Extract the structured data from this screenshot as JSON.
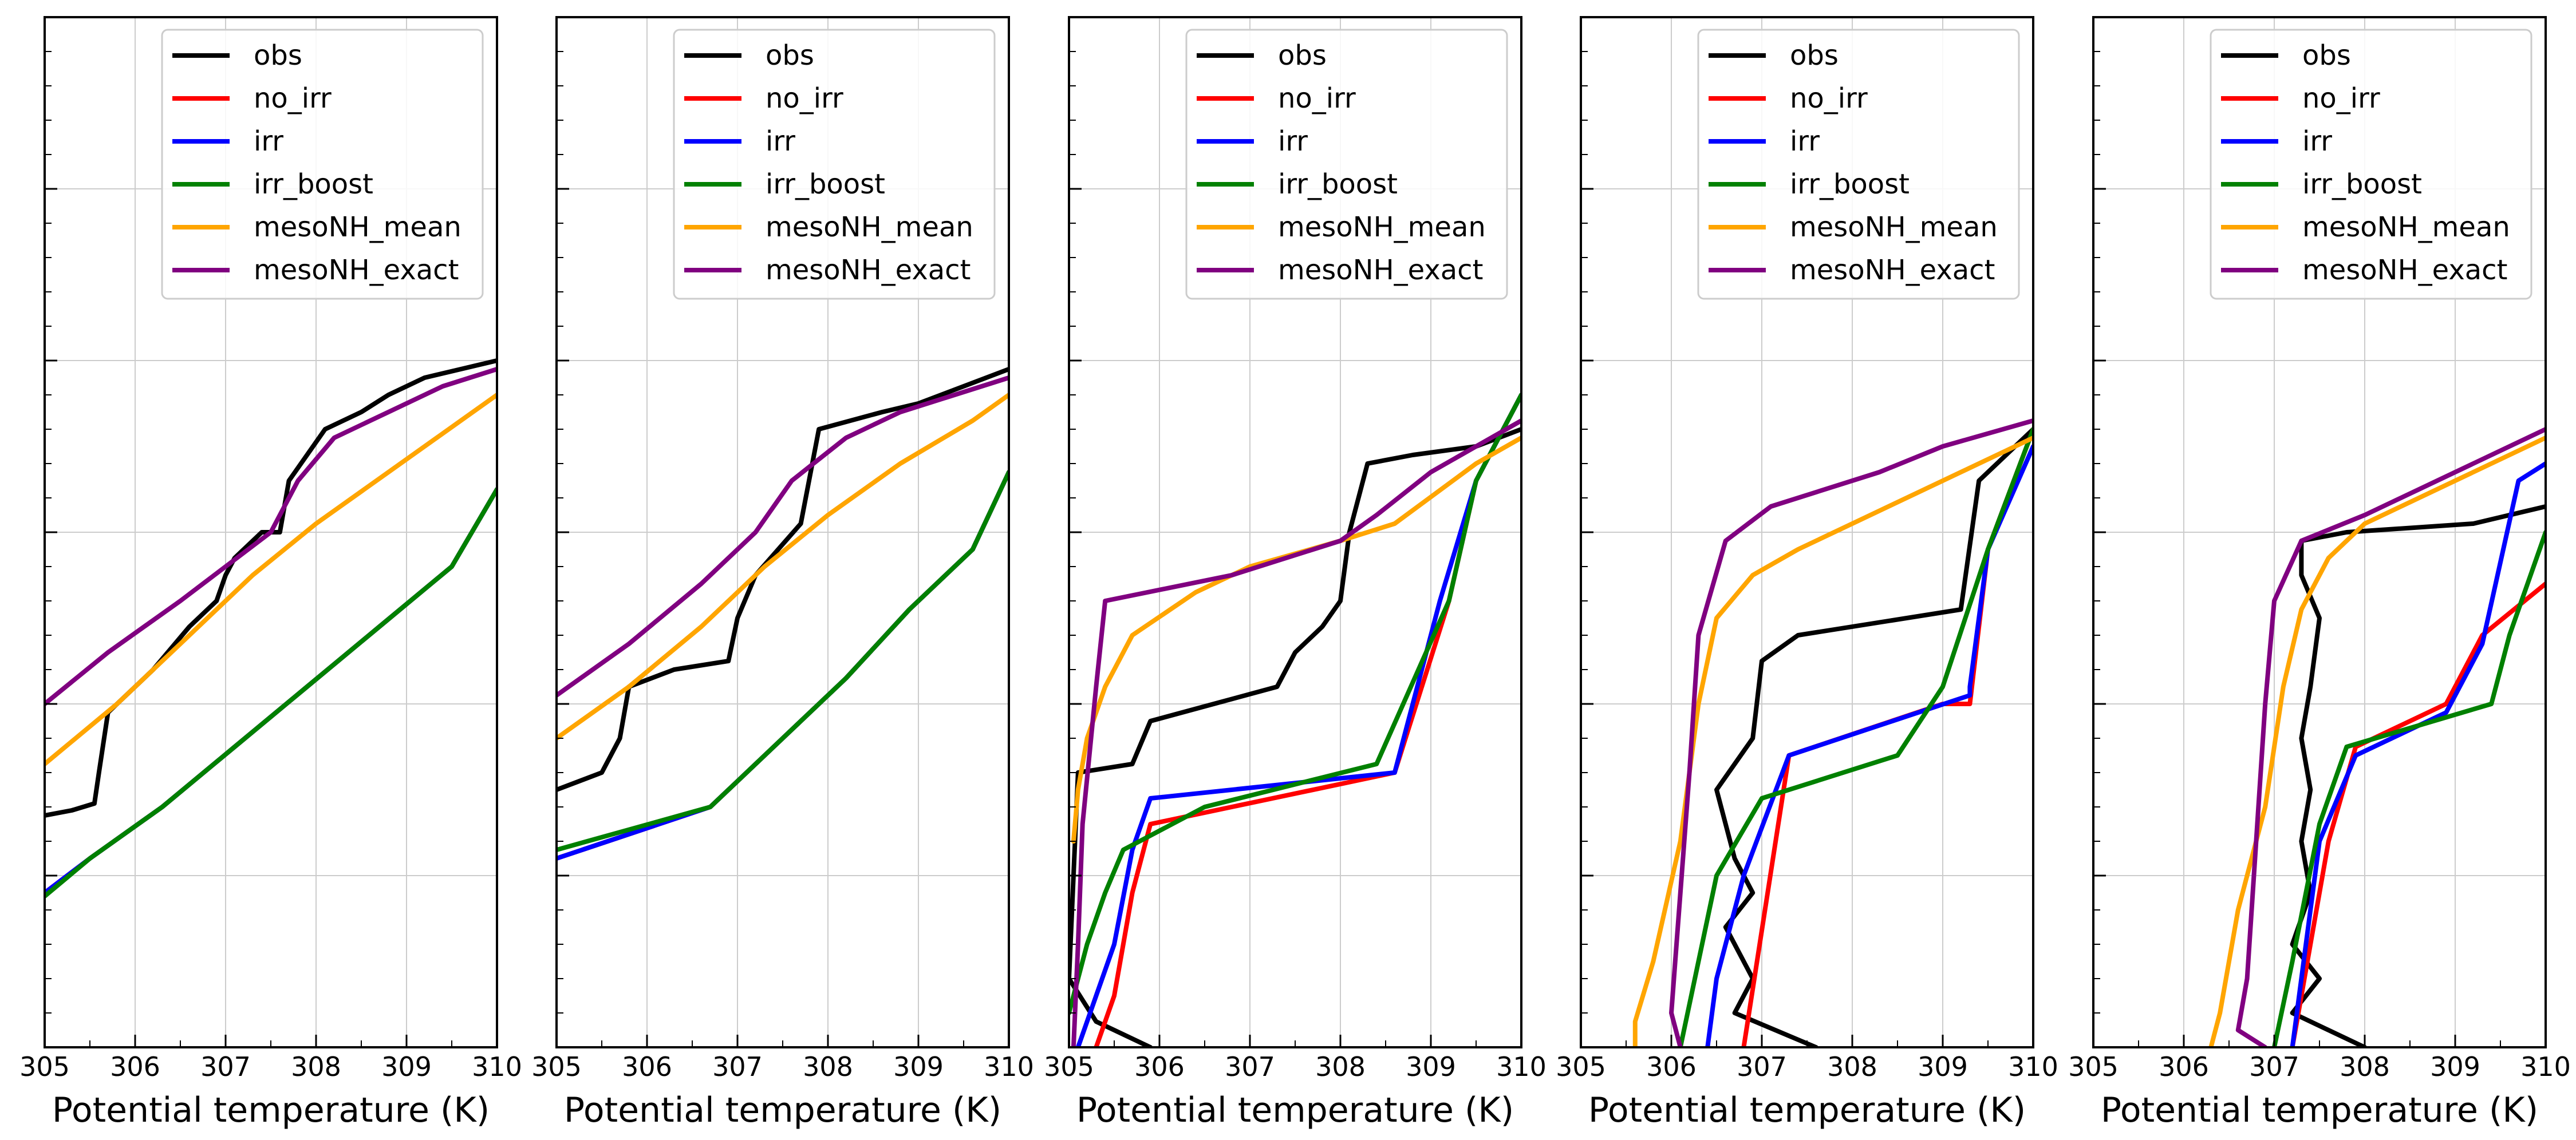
{
  "figure": {
    "panels": 5,
    "xlabel": "Potential temperature (K)",
    "xlim": [
      305,
      310
    ],
    "xticks": [
      "305",
      "306",
      "307",
      "308",
      "309",
      "310"
    ],
    "ylim": [
      0,
      6
    ],
    "grid": true,
    "legend_position": "top-right"
  },
  "colors": {
    "obs": "#000000",
    "no_irr": "#ff0000",
    "irr": "#0000ff",
    "irr_boost": "#008000",
    "mesoNH_mean": "#ffa500",
    "mesoNH_exact": "#800080"
  },
  "chart_data": [
    {
      "type": "line",
      "xlabel": "Potential temperature (K)",
      "xlim": [
        305,
        310
      ],
      "ylim": [
        0,
        6
      ],
      "series": [
        {
          "name": "obs",
          "key": "obs",
          "x": [
            305.0,
            305.3,
            305.55,
            305.6,
            305.7,
            305.8,
            306.2,
            306.6,
            306.9,
            307.0,
            307.1,
            307.4,
            307.6,
            307.7,
            308.1,
            308.5,
            308.8,
            309.2,
            309.6,
            310.0
          ],
          "y": [
            1.35,
            1.38,
            1.42,
            1.6,
            1.95,
            2.0,
            2.2,
            2.45,
            2.6,
            2.75,
            2.85,
            3.0,
            3.0,
            3.3,
            3.6,
            3.7,
            3.8,
            3.9,
            3.95,
            4.0
          ]
        },
        {
          "name": "no_irr",
          "key": "no_irr",
          "x": [
            305.0,
            305.5,
            306.3,
            307.1,
            307.9,
            308.7,
            309.5,
            310.0
          ],
          "y": [
            0.9,
            1.1,
            1.4,
            1.75,
            2.1,
            2.45,
            2.8,
            3.25
          ]
        },
        {
          "name": "irr",
          "key": "irr",
          "x": [
            305.0,
            305.5,
            306.3,
            307.1,
            307.9,
            308.7,
            309.5,
            310.0
          ],
          "y": [
            0.9,
            1.1,
            1.4,
            1.75,
            2.1,
            2.45,
            2.8,
            3.25
          ]
        },
        {
          "name": "irr_boost",
          "key": "irr_boost",
          "x": [
            305.0,
            305.5,
            306.3,
            307.1,
            307.9,
            308.7,
            309.5,
            310.0
          ],
          "y": [
            0.88,
            1.1,
            1.4,
            1.75,
            2.1,
            2.45,
            2.8,
            3.25
          ]
        },
        {
          "name": "mesoNH_mean",
          "key": "mesoNH_mean",
          "x": [
            305.0,
            305.8,
            306.6,
            307.3,
            308.0,
            308.8,
            309.6,
            310.0
          ],
          "y": [
            1.65,
            2.0,
            2.4,
            2.75,
            3.05,
            3.35,
            3.65,
            3.8
          ]
        },
        {
          "name": "mesoNH_exact",
          "key": "mesoNH_exact",
          "x": [
            305.0,
            305.7,
            306.5,
            307.0,
            307.5,
            307.8,
            308.2,
            308.8,
            309.4,
            310.0
          ],
          "y": [
            2.0,
            2.3,
            2.6,
            2.8,
            3.0,
            3.3,
            3.55,
            3.7,
            3.85,
            3.95
          ]
        }
      ]
    },
    {
      "type": "line",
      "xlabel": "Potential temperature (K)",
      "xlim": [
        305,
        310
      ],
      "ylim": [
        0,
        6
      ],
      "series": [
        {
          "name": "obs",
          "key": "obs",
          "x": [
            305.0,
            305.5,
            305.7,
            305.8,
            306.3,
            306.9,
            307.0,
            307.2,
            307.7,
            307.9,
            308.6,
            309.0,
            309.5,
            310.0
          ],
          "y": [
            1.5,
            1.6,
            1.8,
            2.1,
            2.2,
            2.25,
            2.5,
            2.75,
            3.05,
            3.6,
            3.7,
            3.75,
            3.85,
            3.95
          ]
        },
        {
          "name": "no_irr",
          "key": "no_irr",
          "x": [
            305.0,
            306.7,
            307.5,
            308.2,
            308.9,
            309.6,
            310.0
          ],
          "y": [
            1.1,
            1.4,
            1.8,
            2.15,
            2.55,
            2.9,
            3.35
          ]
        },
        {
          "name": "irr",
          "key": "irr",
          "x": [
            305.0,
            306.7,
            307.5,
            308.2,
            308.9,
            309.6,
            310.0
          ],
          "y": [
            1.1,
            1.4,
            1.8,
            2.15,
            2.55,
            2.9,
            3.35
          ]
        },
        {
          "name": "irr_boost",
          "key": "irr_boost",
          "x": [
            305.0,
            306.7,
            307.5,
            308.2,
            308.9,
            309.6,
            310.0
          ],
          "y": [
            1.15,
            1.4,
            1.8,
            2.15,
            2.55,
            2.9,
            3.35
          ]
        },
        {
          "name": "mesoNH_mean",
          "key": "mesoNH_mean",
          "x": [
            305.0,
            305.8,
            306.6,
            307.3,
            308.0,
            308.8,
            309.6,
            310.0
          ],
          "y": [
            1.8,
            2.1,
            2.45,
            2.8,
            3.1,
            3.4,
            3.65,
            3.8
          ]
        },
        {
          "name": "mesoNH_exact",
          "key": "mesoNH_exact",
          "x": [
            305.0,
            305.8,
            306.6,
            307.2,
            307.6,
            308.2,
            308.8,
            309.4,
            310.0
          ],
          "y": [
            2.05,
            2.35,
            2.7,
            3.0,
            3.3,
            3.55,
            3.7,
            3.8,
            3.9
          ]
        }
      ]
    },
    {
      "type": "line",
      "xlabel": "Potential temperature (K)",
      "xlim": [
        305,
        310
      ],
      "ylim": [
        0,
        6
      ],
      "series": [
        {
          "name": "obs",
          "key": "obs",
          "x": [
            305.9,
            305.3,
            305.0,
            305.1,
            305.7,
            305.9,
            306.6,
            307.3,
            307.5,
            307.8,
            308.0,
            308.1,
            308.2,
            308.3,
            308.8,
            309.5,
            310.0
          ],
          "y": [
            0.0,
            0.15,
            0.4,
            1.6,
            1.65,
            1.9,
            2.0,
            2.1,
            2.3,
            2.45,
            2.6,
            3.0,
            3.2,
            3.4,
            3.45,
            3.5,
            3.6
          ]
        },
        {
          "name": "no_irr",
          "key": "no_irr",
          "x": [
            305.3,
            305.5,
            305.6,
            305.7,
            305.9,
            308.6,
            309.2,
            309.5,
            310.0
          ],
          "y": [
            0.0,
            0.3,
            0.6,
            0.9,
            1.3,
            1.6,
            2.6,
            3.3,
            3.8
          ]
        },
        {
          "name": "irr",
          "key": "irr",
          "x": [
            305.1,
            305.3,
            305.5,
            305.7,
            305.9,
            308.6,
            309.1,
            309.5,
            310.0
          ],
          "y": [
            0.0,
            0.3,
            0.6,
            1.15,
            1.45,
            1.6,
            2.6,
            3.3,
            3.8
          ]
        },
        {
          "name": "irr_boost",
          "key": "irr_boost",
          "x": [
            305.0,
            305.2,
            305.4,
            305.6,
            306.5,
            308.4,
            309.2,
            309.5,
            310.0
          ],
          "y": [
            0.2,
            0.6,
            0.9,
            1.15,
            1.4,
            1.65,
            2.6,
            3.3,
            3.8
          ]
        },
        {
          "name": "mesoNH_mean",
          "key": "mesoNH_mean",
          "x": [
            305.05,
            305.1,
            305.2,
            305.4,
            305.7,
            306.4,
            307.0,
            308.0,
            308.6,
            309.5,
            310.0
          ],
          "y": [
            1.2,
            1.5,
            1.8,
            2.1,
            2.4,
            2.65,
            2.8,
            2.95,
            3.05,
            3.4,
            3.55
          ]
        },
        {
          "name": "mesoNH_exact",
          "key": "mesoNH_exact",
          "x": [
            305.05,
            305.1,
            305.15,
            305.3,
            305.4,
            306.8,
            308.0,
            308.4,
            309.0,
            310.0
          ],
          "y": [
            0.0,
            0.6,
            1.3,
            2.1,
            2.6,
            2.75,
            2.95,
            3.1,
            3.35,
            3.65
          ]
        }
      ]
    },
    {
      "type": "line",
      "xlabel": "Potential temperature (K)",
      "xlim": [
        305,
        310
      ],
      "ylim": [
        0,
        6
      ],
      "series": [
        {
          "name": "obs",
          "key": "obs",
          "x": [
            307.6,
            306.7,
            306.9,
            306.6,
            306.9,
            306.7,
            306.5,
            306.9,
            307.0,
            307.4,
            309.2,
            309.4,
            309.8,
            310.0
          ],
          "y": [
            0.0,
            0.2,
            0.4,
            0.7,
            0.9,
            1.1,
            1.5,
            1.8,
            2.25,
            2.4,
            2.55,
            3.3,
            3.5,
            3.6
          ]
        },
        {
          "name": "no_irr",
          "key": "no_irr",
          "x": [
            306.8,
            307.3,
            309.0,
            309.3,
            309.5,
            310.0
          ],
          "y": [
            0.0,
            1.7,
            2.0,
            2.0,
            2.9,
            3.6
          ]
        },
        {
          "name": "irr",
          "key": "irr",
          "x": [
            306.4,
            306.5,
            306.8,
            307.3,
            309.3,
            309.3,
            309.5,
            310.0
          ],
          "y": [
            0.0,
            0.4,
            1.0,
            1.7,
            2.05,
            2.1,
            2.9,
            3.5
          ]
        },
        {
          "name": "irr_boost",
          "key": "irr_boost",
          "x": [
            306.1,
            306.3,
            306.5,
            307.0,
            308.5,
            309.0,
            309.5,
            310.0
          ],
          "y": [
            0.0,
            0.5,
            1.0,
            1.45,
            1.7,
            2.1,
            2.9,
            3.6
          ]
        },
        {
          "name": "mesoNH_mean",
          "key": "mesoNH_mean",
          "x": [
            305.6,
            305.6,
            305.8,
            306.1,
            306.3,
            306.5,
            306.9,
            307.4,
            308.0,
            309.0,
            310.0
          ],
          "y": [
            0.0,
            0.15,
            0.5,
            1.2,
            2.0,
            2.5,
            2.75,
            2.9,
            3.05,
            3.3,
            3.55
          ]
        },
        {
          "name": "mesoNH_exact",
          "key": "mesoNH_exact",
          "x": [
            306.1,
            306.0,
            306.1,
            306.2,
            306.3,
            306.6,
            307.1,
            308.3,
            309.0,
            310.0
          ],
          "y": [
            0.0,
            0.2,
            0.9,
            1.6,
            2.4,
            2.95,
            3.15,
            3.35,
            3.5,
            3.65
          ]
        }
      ]
    },
    {
      "type": "line",
      "xlabel": "Potential temperature (K)",
      "xlim": [
        305,
        310
      ],
      "ylim": [
        0,
        6
      ],
      "series": [
        {
          "name": "obs",
          "key": "obs",
          "x": [
            308.0,
            307.2,
            307.5,
            307.2,
            307.4,
            307.3,
            307.4,
            307.3,
            307.4,
            307.5,
            307.3,
            307.3,
            307.8,
            309.2,
            310.0
          ],
          "y": [
            0.0,
            0.2,
            0.4,
            0.6,
            0.9,
            1.2,
            1.5,
            1.8,
            2.1,
            2.5,
            2.75,
            2.95,
            3.0,
            3.05,
            3.15
          ]
        },
        {
          "name": "no_irr",
          "key": "no_irr",
          "x": [
            307.2,
            307.6,
            307.9,
            308.9,
            309.3,
            310.0
          ],
          "y": [
            0.0,
            1.2,
            1.75,
            2.0,
            2.4,
            2.7
          ]
        },
        {
          "name": "irr",
          "key": "irr",
          "x": [
            307.2,
            307.5,
            307.9,
            308.9,
            309.3,
            309.7,
            310.0
          ],
          "y": [
            0.0,
            1.2,
            1.7,
            1.95,
            2.35,
            3.3,
            3.4
          ]
        },
        {
          "name": "irr_boost",
          "key": "irr_boost",
          "x": [
            307.0,
            307.2,
            307.5,
            307.8,
            309.4,
            309.6,
            310.0
          ],
          "y": [
            0.0,
            0.5,
            1.3,
            1.75,
            2.0,
            2.4,
            3.0
          ]
        },
        {
          "name": "mesoNH_mean",
          "key": "mesoNH_mean",
          "x": [
            306.3,
            306.4,
            306.6,
            306.9,
            307.1,
            307.3,
            307.6,
            308.0,
            309.0,
            310.0
          ],
          "y": [
            0.0,
            0.2,
            0.8,
            1.4,
            2.1,
            2.55,
            2.85,
            3.05,
            3.3,
            3.55
          ]
        },
        {
          "name": "mesoNH_exact",
          "key": "mesoNH_exact",
          "x": [
            306.9,
            306.6,
            306.7,
            306.8,
            306.9,
            307.0,
            307.3,
            308.0,
            309.0,
            310.0
          ],
          "y": [
            0.0,
            0.1,
            0.4,
            1.2,
            2.0,
            2.6,
            2.95,
            3.1,
            3.35,
            3.6
          ]
        }
      ]
    }
  ]
}
